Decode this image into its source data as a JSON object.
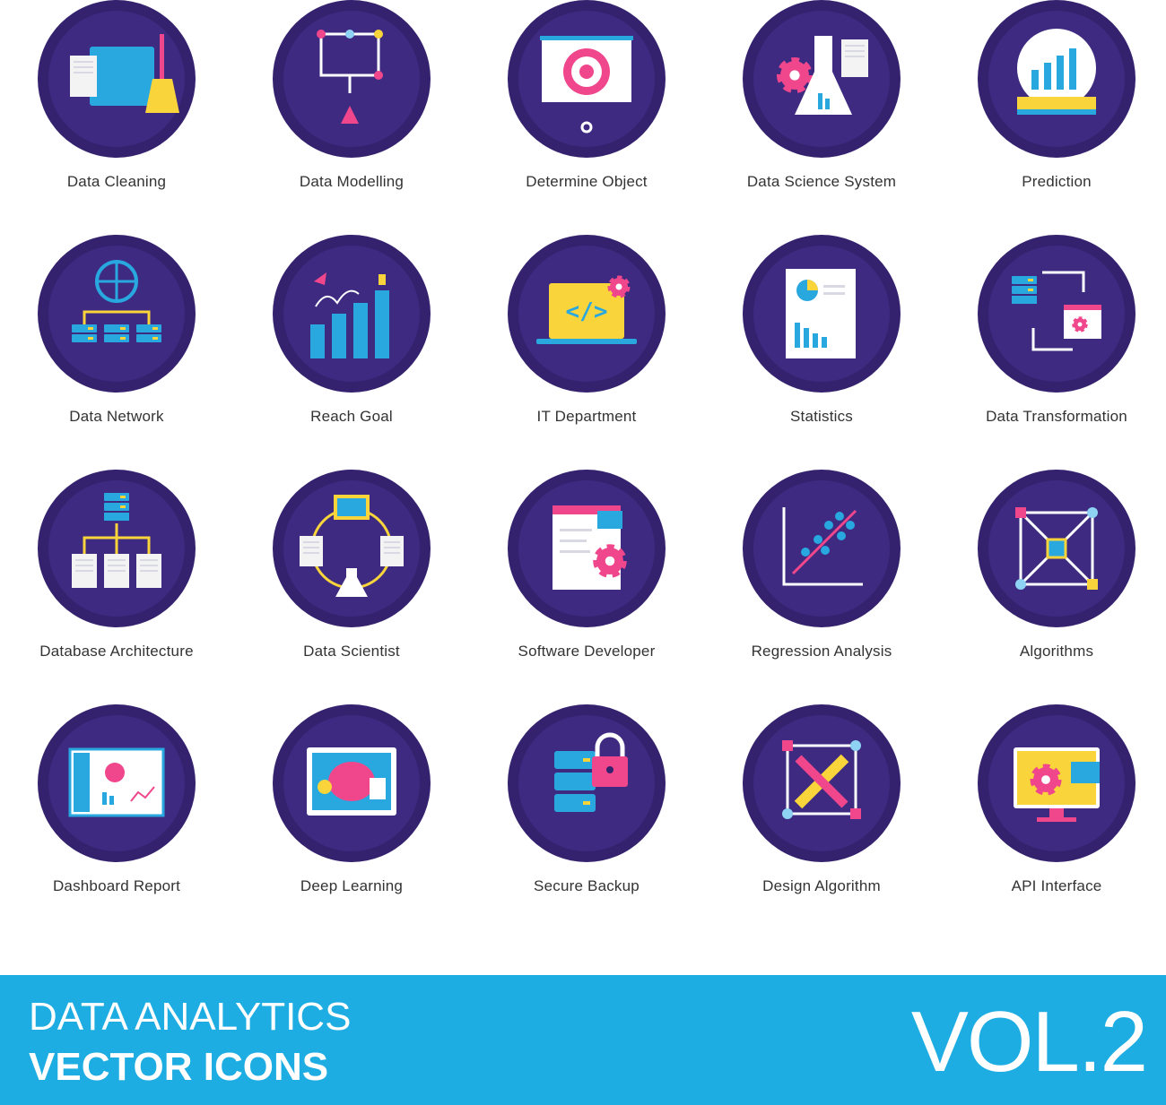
{
  "icons": [
    {
      "label": "Data Cleaning",
      "icon": "folder-broom-icon"
    },
    {
      "label": "Data Modelling",
      "icon": "flow-nodes-icon"
    },
    {
      "label": "Determine Object",
      "icon": "target-board-icon"
    },
    {
      "label": "Data Science System",
      "icon": "gear-flask-icon"
    },
    {
      "label": "Prediction",
      "icon": "crystal-ball-chart-icon"
    },
    {
      "label": "Data Network",
      "icon": "globe-servers-icon"
    },
    {
      "label": "Reach Goal",
      "icon": "bars-trophy-icon"
    },
    {
      "label": "IT Department",
      "icon": "laptop-code-icon"
    },
    {
      "label": "Statistics",
      "icon": "report-chart-icon"
    },
    {
      "label": "Data Transformation",
      "icon": "server-transform-icon"
    },
    {
      "label": "Database Architecture",
      "icon": "database-tree-icon"
    },
    {
      "label": "Data Scientist",
      "icon": "code-cycle-flask-icon"
    },
    {
      "label": "Software Developer",
      "icon": "code-window-gear-icon"
    },
    {
      "label": "Regression Analysis",
      "icon": "scatter-regression-icon"
    },
    {
      "label": "Algorithms",
      "icon": "node-network-icon"
    },
    {
      "label": "Dashboard Report",
      "icon": "dashboard-monitor-icon"
    },
    {
      "label": "Deep Learning",
      "icon": "brain-tablet-icon"
    },
    {
      "label": "Secure Backup",
      "icon": "server-lock-icon"
    },
    {
      "label": "Design Algorithm",
      "icon": "pencil-ruler-nodes-icon"
    },
    {
      "label": "API Interface",
      "icon": "monitor-gear-code-icon"
    }
  ],
  "banner": {
    "line1": "DATA ANALYTICS",
    "line2": "VECTOR ICONS",
    "volume": "VOL.2"
  },
  "colors": {
    "circle_outer": "#35226f",
    "circle_inner": "#3e2a80",
    "banner": "#1eade2",
    "accent_blue": "#29a8e0",
    "accent_pink": "#f0468c",
    "accent_yellow": "#f9d43a"
  }
}
